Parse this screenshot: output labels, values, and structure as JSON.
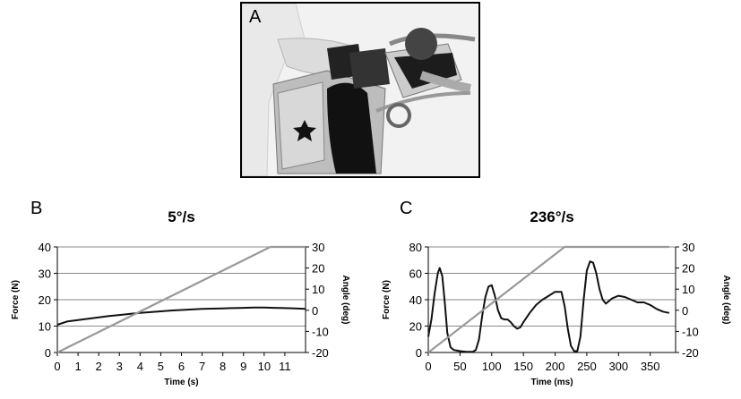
{
  "panels": {
    "photo": {
      "letter": "A"
    },
    "left": {
      "letter": "B"
    },
    "right": {
      "letter": "C"
    }
  },
  "chart_data": [
    {
      "type": "line",
      "title": "5°/s",
      "xlabel": "Time (s)",
      "ylabel": "Force (N)",
      "y2label": "Angle (deg)",
      "xlim": [
        0,
        12
      ],
      "xticks": [
        0,
        1,
        2,
        3,
        4,
        5,
        6,
        7,
        8,
        9,
        10,
        11
      ],
      "ylim": [
        0,
        40
      ],
      "yticks": [
        0,
        10,
        20,
        30,
        40
      ],
      "y2lim": [
        -20,
        30
      ],
      "y2ticks": [
        -20,
        -10,
        0,
        10,
        20,
        30
      ],
      "grid": "horizontal",
      "legend": "none",
      "series": [
        {
          "axis": "left",
          "color": "#111111",
          "x": [
            0,
            0.5,
            1,
            1.5,
            2,
            2.5,
            3,
            3.5,
            4,
            4.5,
            5,
            5.5,
            6,
            6.5,
            7,
            7.5,
            8,
            8.5,
            9,
            9.5,
            10,
            10.5,
            11,
            11.5,
            12
          ],
          "y": [
            10.5,
            11.8,
            12.3,
            12.8,
            13.3,
            13.8,
            14.2,
            14.6,
            15.0,
            15.3,
            15.6,
            15.9,
            16.1,
            16.3,
            16.5,
            16.6,
            16.7,
            16.8,
            16.9,
            17.0,
            17.0,
            16.9,
            16.8,
            16.7,
            16.5
          ]
        },
        {
          "axis": "right",
          "color": "#999999",
          "x": [
            0,
            10.3,
            12
          ],
          "y": [
            -20,
            30,
            30
          ]
        }
      ]
    },
    {
      "type": "line",
      "title": "236°/s",
      "xlabel": "Time (ms)",
      "ylabel": "Force (N)",
      "y2label": "Angle (deg)",
      "xlim": [
        0,
        390
      ],
      "xticks": [
        0,
        50,
        100,
        150,
        200,
        250,
        300,
        350
      ],
      "ylim": [
        0,
        80
      ],
      "yticks": [
        0,
        20,
        40,
        60,
        80
      ],
      "y2lim": [
        -20,
        30
      ],
      "y2ticks": [
        -20,
        -10,
        0,
        10,
        20,
        30
      ],
      "grid": "horizontal",
      "legend": "none",
      "series": [
        {
          "axis": "left",
          "color": "#111111",
          "x": [
            0,
            5,
            10,
            15,
            18,
            22,
            26,
            30,
            35,
            40,
            50,
            60,
            70,
            75,
            80,
            85,
            90,
            95,
            100,
            105,
            110,
            115,
            120,
            125,
            130,
            135,
            140,
            145,
            150,
            160,
            170,
            180,
            190,
            200,
            210,
            215,
            220,
            225,
            230,
            235,
            240,
            245,
            250,
            255,
            260,
            265,
            270,
            275,
            280,
            290,
            300,
            310,
            320,
            330,
            340,
            350,
            360,
            370,
            380
          ],
          "y": [
            12,
            25,
            45,
            60,
            64,
            58,
            38,
            15,
            4,
            2,
            1,
            0.5,
            0.5,
            2,
            10,
            28,
            42,
            50,
            51,
            43,
            32,
            26,
            25,
            25,
            23,
            20,
            18,
            19,
            23,
            30,
            36,
            40,
            43,
            46,
            46,
            35,
            18,
            5,
            1,
            1,
            12,
            40,
            62,
            69,
            68,
            60,
            48,
            40,
            37,
            41,
            43,
            42,
            40,
            38,
            38,
            36,
            33,
            31,
            30
          ]
        },
        {
          "axis": "right",
          "color": "#999999",
          "x": [
            0,
            215,
            380
          ],
          "y": [
            -20,
            30,
            30
          ]
        }
      ]
    }
  ]
}
